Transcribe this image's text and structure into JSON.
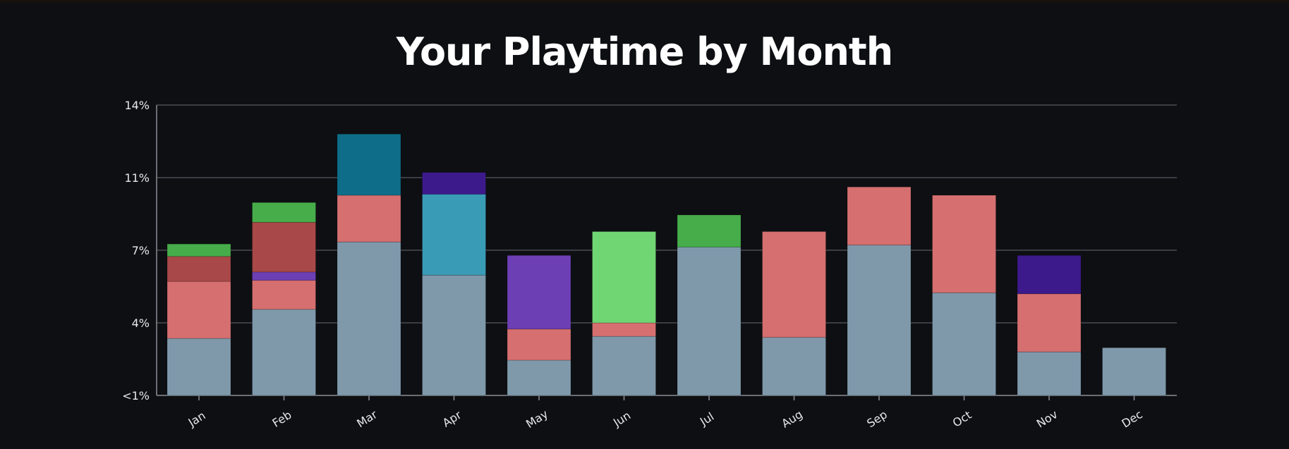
{
  "chart_data": {
    "type": "bar",
    "stacked": true,
    "title": "Your Playtime by Month",
    "categories": [
      "Jan",
      "Feb",
      "Mar",
      "Apr",
      "May",
      "Jun",
      "Jul",
      "Aug",
      "Sep",
      "Oct",
      "Nov",
      "Dec"
    ],
    "y_ticks": [
      {
        "value": 0,
        "label": "<1%"
      },
      {
        "value": 3.5,
        "label": "4%"
      },
      {
        "value": 7,
        "label": "7%"
      },
      {
        "value": 10.5,
        "label": "11%"
      },
      {
        "value": 14,
        "label": "14%"
      }
    ],
    "ylim": [
      0,
      14
    ],
    "grid": true,
    "stacks": [
      [
        {
          "value": 2.75,
          "color": "#7f99ab"
        },
        {
          "value": 2.75,
          "color": "#d66f6f"
        },
        {
          "value": 1.2,
          "color": "#a84848"
        },
        {
          "value": 0.6,
          "color": "#46ad4a"
        }
      ],
      [
        {
          "value": 4.15,
          "color": "#7f99ab"
        },
        {
          "value": 1.4,
          "color": "#d66f6f"
        },
        {
          "value": 0.4,
          "color": "#6d3fb4"
        },
        {
          "value": 2.4,
          "color": "#a84848"
        },
        {
          "value": 0.95,
          "color": "#46ad4a"
        }
      ],
      [
        {
          "value": 7.4,
          "color": "#7f99ab"
        },
        {
          "value": 2.25,
          "color": "#d66f6f"
        },
        {
          "value": 2.95,
          "color": "#0e6e89"
        }
      ],
      [
        {
          "value": 5.8,
          "color": "#7f99ab"
        },
        {
          "value": 3.9,
          "color": "#3a9bb6"
        },
        {
          "value": 1.05,
          "color": "#3d1a8c"
        }
      ],
      [
        {
          "value": 1.7,
          "color": "#7f99ab"
        },
        {
          "value": 1.5,
          "color": "#d66f6f"
        },
        {
          "value": 3.55,
          "color": "#6d3fb4"
        }
      ],
      [
        {
          "value": 2.85,
          "color": "#7f99ab"
        },
        {
          "value": 0.65,
          "color": "#d66f6f"
        },
        {
          "value": 4.4,
          "color": "#70d673"
        }
      ],
      [
        {
          "value": 7.15,
          "color": "#7f99ab"
        },
        {
          "value": 1.55,
          "color": "#46ad4a"
        }
      ],
      [
        {
          "value": 2.8,
          "color": "#7f99ab"
        },
        {
          "value": 5.1,
          "color": "#d66f6f"
        }
      ],
      [
        {
          "value": 7.25,
          "color": "#7f99ab"
        },
        {
          "value": 2.8,
          "color": "#d66f6f"
        }
      ],
      [
        {
          "value": 4.95,
          "color": "#7f99ab"
        },
        {
          "value": 4.7,
          "color": "#d66f6f"
        }
      ],
      [
        {
          "value": 2.1,
          "color": "#7f99ab"
        },
        {
          "value": 2.8,
          "color": "#d66f6f"
        },
        {
          "value": 1.85,
          "color": "#3d1a8c"
        }
      ],
      [
        {
          "value": 2.3,
          "color": "#7f99ab"
        }
      ]
    ]
  },
  "colors": {
    "background": "#0e0f13",
    "grid": "#4a4d55",
    "axis": "#8a8e96",
    "text": "#e6e8ec"
  }
}
